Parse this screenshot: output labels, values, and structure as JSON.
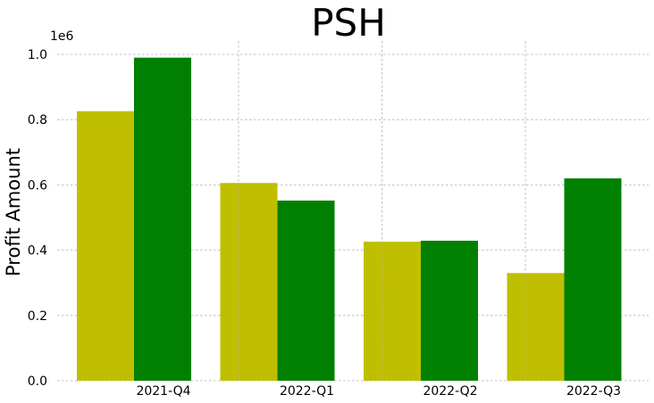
{
  "chart_data": {
    "type": "bar",
    "title": "PSH",
    "xlabel": "",
    "ylabel": "Profit Amount",
    "y_offset_label": "1e6",
    "categories": [
      "2021-Q4",
      "2022-Q1",
      "2022-Q2",
      "2022-Q3"
    ],
    "series": [
      {
        "values": [
          826000,
          606000,
          426000,
          330000
        ],
        "color": "#bfbf00"
      },
      {
        "values": [
          990000,
          552000,
          429000,
          620000
        ],
        "color": "#008000"
      }
    ],
    "ylim": [
      0,
      1000000.0
    ],
    "yticks": [
      0,
      200000,
      400000,
      600000,
      800000,
      1000000
    ],
    "ytick_labels": [
      "0.0",
      "0.2",
      "0.4",
      "0.6",
      "0.8",
      "1.0"
    ],
    "grid": true,
    "legend": "none"
  }
}
